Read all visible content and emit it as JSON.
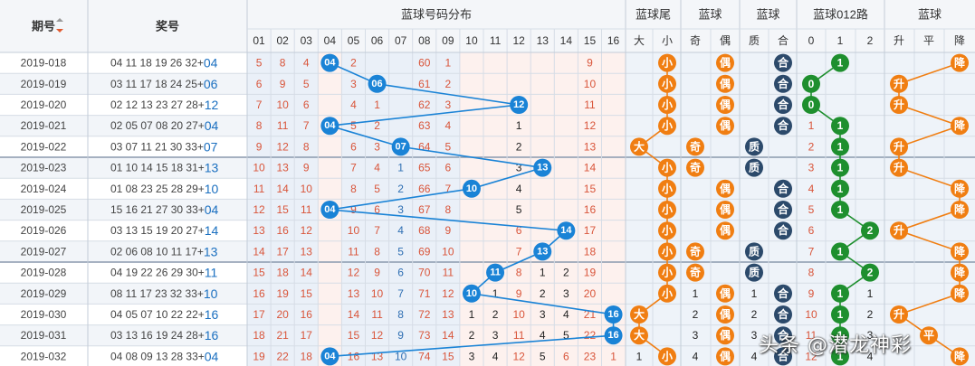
{
  "header": {
    "period": "期号",
    "numbers": "奖号",
    "blue_dist": "蓝球号码分布",
    "tail": "蓝球尾",
    "parity": "蓝球",
    "prime": "蓝球",
    "route": "蓝球012路",
    "trend": "蓝球",
    "sub_cols": [
      "01",
      "02",
      "03",
      "04",
      "05",
      "06",
      "07",
      "08",
      "09",
      "10",
      "11",
      "12",
      "13",
      "14",
      "15",
      "16"
    ],
    "tail_sub": [
      "大",
      "小"
    ],
    "parity_sub": [
      "奇",
      "偶"
    ],
    "prime_sub": [
      "质",
      "合"
    ],
    "route_sub": [
      "0",
      "1",
      "2"
    ],
    "trend_sub": [
      "升",
      "平",
      "降"
    ]
  },
  "labels": {
    "big": "大",
    "small": "小",
    "odd": "奇",
    "even": "偶",
    "prime": "质",
    "composite": "合",
    "up": "升",
    "flat": "平",
    "down": "降"
  },
  "watermark": "头条 @潜龙神彩",
  "colors": {
    "blue_ball": "#1a83d6",
    "orange_ball": "#f07e12",
    "navy_ball": "#2c4a6b",
    "green_ball": "#1e8f2e",
    "miss_red": "#d9553a",
    "miss_blue": "#2f6fb3",
    "miss_black": "#222222"
  },
  "chart_data": {
    "type": "table",
    "rows": [
      {
        "period": "2019-018",
        "reds": "04 11 18 19 26 32",
        "blue": "04",
        "blue_num": 4,
        "dist": [
          "5",
          "8",
          "4",
          "",
          "2",
          "",
          "",
          "60",
          "1",
          "",
          "",
          "",
          "",
          "",
          "9",
          ""
        ],
        "tail": "small",
        "parity": "even",
        "prime": "composite",
        "route": "1",
        "trend": "down",
        "tail_miss": [
          "",
          ""
        ],
        "parity_miss": [
          "",
          ""
        ],
        "prime_miss": [
          "",
          ""
        ],
        "route_miss": [
          "",
          "",
          ""
        ]
      },
      {
        "period": "2019-019",
        "reds": "03 11 17 18 24 25",
        "blue": "06",
        "blue_num": 6,
        "dist": [
          "6",
          "9",
          "5",
          "",
          "3",
          "",
          "",
          "61",
          "2",
          "",
          "",
          "",
          "",
          "",
          "10",
          ""
        ],
        "tail": "small",
        "parity": "even",
        "prime": "composite",
        "route": "0",
        "trend": "up",
        "tail_miss": [
          "",
          ""
        ],
        "parity_miss": [
          "",
          ""
        ],
        "prime_miss": [
          "",
          ""
        ],
        "route_miss": [
          "",
          "",
          ""
        ]
      },
      {
        "period": "2019-020",
        "reds": "02 12 13 23 27 28",
        "blue": "12",
        "blue_num": 12,
        "dist": [
          "7",
          "10",
          "6",
          "",
          "4",
          "1",
          "",
          "62",
          "3",
          "",
          "",
          "",
          "",
          "",
          "11",
          ""
        ],
        "tail": "small",
        "parity": "even",
        "prime": "composite",
        "route": "0",
        "trend": "up",
        "tail_miss": [
          "",
          ""
        ],
        "parity_miss": [
          "",
          ""
        ],
        "prime_miss": [
          "",
          ""
        ],
        "route_miss": [
          "",
          "",
          ""
        ]
      },
      {
        "period": "2019-021",
        "reds": "02 05 07 08 20 27",
        "blue": "04",
        "blue_num": 4,
        "dist": [
          "8",
          "11",
          "7",
          "",
          "5",
          "2",
          "",
          "63",
          "4",
          "",
          "",
          "1",
          "",
          "",
          "12",
          ""
        ],
        "tail": "small",
        "parity": "even",
        "prime": "composite",
        "route": "1",
        "trend": "down",
        "tail_miss": [
          "",
          ""
        ],
        "parity_miss": [
          "",
          ""
        ],
        "prime_miss": [
          "",
          ""
        ],
        "route_miss": [
          "1",
          "",
          ""
        ]
      },
      {
        "period": "2019-022",
        "reds": "03 07 11 21 30 33",
        "blue": "07",
        "blue_num": 7,
        "dist": [
          "9",
          "12",
          "8",
          "",
          "6",
          "3",
          "",
          "64",
          "5",
          "",
          "",
          "2",
          "",
          "",
          "13",
          ""
        ],
        "tail": "big",
        "parity": "odd",
        "prime": "prime",
        "route": "1",
        "trend": "up",
        "tail_miss": [
          "",
          ""
        ],
        "parity_miss": [
          "",
          ""
        ],
        "prime_miss": [
          "",
          ""
        ],
        "route_miss": [
          "2",
          "",
          ""
        ]
      },
      {
        "period": "2019-023",
        "reds": "01 10 14 15 18 31",
        "blue": "13",
        "blue_num": 13,
        "dist": [
          "10",
          "13",
          "9",
          "",
          "7",
          "4",
          "1",
          "65",
          "6",
          "",
          "",
          "3",
          "",
          "",
          "14",
          ""
        ],
        "tail": "small",
        "parity": "odd",
        "prime": "prime",
        "route": "1",
        "trend": "up",
        "tail_miss": [
          "",
          ""
        ],
        "parity_miss": [
          "",
          ""
        ],
        "prime_miss": [
          "",
          ""
        ],
        "route_miss": [
          "3",
          "",
          ""
        ]
      },
      {
        "period": "2019-024",
        "reds": "01 08 23 25 28 29",
        "blue": "10",
        "blue_num": 10,
        "dist": [
          "11",
          "14",
          "10",
          "",
          "8",
          "5",
          "2",
          "66",
          "7",
          "",
          "",
          "4",
          "",
          "",
          "15",
          ""
        ],
        "tail": "small",
        "parity": "even",
        "prime": "composite",
        "route": "1",
        "trend": "down",
        "tail_miss": [
          "",
          ""
        ],
        "parity_miss": [
          "",
          ""
        ],
        "prime_miss": [
          "",
          ""
        ],
        "route_miss": [
          "4",
          "",
          ""
        ]
      },
      {
        "period": "2019-025",
        "reds": "15 16 21 27 30 33",
        "blue": "04",
        "blue_num": 4,
        "dist": [
          "12",
          "15",
          "11",
          "",
          "9",
          "6",
          "3",
          "67",
          "8",
          "",
          "",
          "5",
          "",
          "",
          "16",
          ""
        ],
        "tail": "small",
        "parity": "even",
        "prime": "composite",
        "route": "1",
        "trend": "down",
        "tail_miss": [
          "",
          ""
        ],
        "parity_miss": [
          "",
          ""
        ],
        "prime_miss": [
          "",
          ""
        ],
        "route_miss": [
          "5",
          "",
          ""
        ]
      },
      {
        "period": "2019-026",
        "reds": "03 13 15 19 20 27",
        "blue": "14",
        "blue_num": 14,
        "dist": [
          "13",
          "16",
          "12",
          "",
          "10",
          "7",
          "4",
          "68",
          "9",
          "",
          "",
          "6",
          "",
          "",
          "17",
          ""
        ],
        "tail": "small",
        "parity": "even",
        "prime": "composite",
        "route": "2",
        "trend": "up",
        "tail_miss": [
          "",
          ""
        ],
        "parity_miss": [
          "",
          ""
        ],
        "prime_miss": [
          "",
          ""
        ],
        "route_miss": [
          "6",
          "",
          ""
        ]
      },
      {
        "period": "2019-027",
        "reds": "02 06 08 10 11 17",
        "blue": "13",
        "blue_num": 13,
        "dist": [
          "14",
          "17",
          "13",
          "",
          "11",
          "8",
          "5",
          "69",
          "10",
          "",
          "",
          "7",
          "",
          "",
          "18",
          ""
        ],
        "tail": "small",
        "parity": "odd",
        "prime": "prime",
        "route": "1",
        "trend": "down",
        "tail_miss": [
          "",
          ""
        ],
        "parity_miss": [
          "",
          ""
        ],
        "prime_miss": [
          "",
          ""
        ],
        "route_miss": [
          "7",
          "",
          ""
        ]
      },
      {
        "period": "2019-028",
        "reds": "04 19 22 26 29 30",
        "blue": "11",
        "blue_num": 11,
        "dist": [
          "15",
          "18",
          "14",
          "",
          "12",
          "9",
          "6",
          "70",
          "11",
          "",
          "",
          "8",
          "1",
          "2",
          "19",
          ""
        ],
        "tail": "small",
        "parity": "odd",
        "prime": "prime",
        "route": "2",
        "trend": "down",
        "tail_miss": [
          "",
          ""
        ],
        "parity_miss": [
          "",
          ""
        ],
        "prime_miss": [
          "",
          ""
        ],
        "route_miss": [
          "8",
          "",
          ""
        ]
      },
      {
        "period": "2019-029",
        "reds": "08 11 17 23 32 33",
        "blue": "10",
        "blue_num": 10,
        "dist": [
          "16",
          "19",
          "15",
          "",
          "13",
          "10",
          "7",
          "71",
          "12",
          "",
          "1",
          "9",
          "2",
          "3",
          "20",
          ""
        ],
        "tail": "small",
        "parity": "even",
        "prime": "composite",
        "route": "1",
        "trend": "down",
        "tail_miss": [
          "",
          ""
        ],
        "parity_miss": [
          "1",
          ""
        ],
        "prime_miss": [
          "1",
          ""
        ],
        "route_miss": [
          "9",
          "",
          "1"
        ]
      },
      {
        "period": "2019-030",
        "reds": "04 05 07 10 22 22",
        "blue": "16",
        "blue_num": 16,
        "dist": [
          "17",
          "20",
          "16",
          "",
          "14",
          "11",
          "8",
          "72",
          "13",
          "1",
          "2",
          "10",
          "3",
          "4",
          "21",
          ""
        ],
        "tail": "big",
        "parity": "even",
        "prime": "composite",
        "route": "1",
        "trend": "up",
        "tail_miss": [
          "",
          ""
        ],
        "parity_miss": [
          "2",
          ""
        ],
        "prime_miss": [
          "2",
          ""
        ],
        "route_miss": [
          "10",
          "",
          "2"
        ]
      },
      {
        "period": "2019-031",
        "reds": "03 13 16 19 24 28",
        "blue": "16",
        "blue_num": 16,
        "dist": [
          "18",
          "21",
          "17",
          "",
          "15",
          "12",
          "9",
          "73",
          "14",
          "2",
          "3",
          "11",
          "4",
          "5",
          "22",
          ""
        ],
        "tail": "big",
        "parity": "even",
        "prime": "composite",
        "route": "1",
        "trend": "flat",
        "tail_miss": [
          "",
          ""
        ],
        "parity_miss": [
          "3",
          ""
        ],
        "prime_miss": [
          "3",
          ""
        ],
        "route_miss": [
          "11",
          "",
          "3"
        ]
      },
      {
        "period": "2019-032",
        "reds": "04 08 09 13 28 33",
        "blue": "04",
        "blue_num": 4,
        "dist": [
          "19",
          "22",
          "18",
          "",
          "16",
          "13",
          "10",
          "74",
          "15",
          "3",
          "4",
          "12",
          "5",
          "6",
          "23",
          "1"
        ],
        "tail": "small",
        "parity": "even",
        "prime": "composite",
        "route": "1",
        "trend": "down",
        "tail_miss": [
          "1",
          ""
        ],
        "parity_miss": [
          "4",
          ""
        ],
        "prime_miss": [
          "4",
          ""
        ],
        "route_miss": [
          "12",
          "",
          "4"
        ]
      }
    ]
  }
}
